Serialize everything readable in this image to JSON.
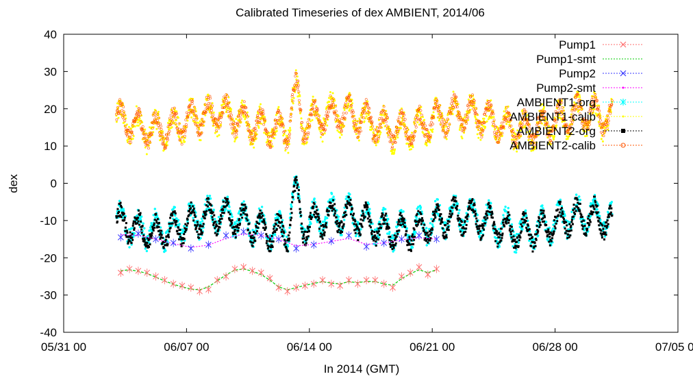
{
  "chart_data": {
    "type": "line",
    "title": "Calibrated Timeseries of dex AMBIENT, 2014/06",
    "xlabel": "In 2014 (GMT)",
    "ylabel": "dex",
    "ylim": [
      -40,
      40
    ],
    "xlim": [
      "2014-05-31 00:00",
      "2014-07-05 00:00"
    ],
    "y_ticks": [
      -40,
      -30,
      -20,
      -10,
      0,
      10,
      20,
      30,
      40
    ],
    "x_ticks": [
      {
        "value": "2014-05-31 00:00",
        "label": "05/31 00"
      },
      {
        "value": "2014-06-07 00:00",
        "label": "06/07 00"
      },
      {
        "value": "2014-06-14 00:00",
        "label": "06/14 00"
      },
      {
        "value": "2014-06-21 00:00",
        "label": "06/21 00"
      },
      {
        "value": "2014-06-28 00:00",
        "label": "06/28 00"
      },
      {
        "value": "2014-07-05 00:00",
        "label": "07/05 00"
      }
    ],
    "grid": false,
    "legend_position": "top-right",
    "series": [
      {
        "name": "Pump1",
        "color": "#ff6b6b",
        "marker": "cross",
        "style": "points-errorbars",
        "x": [
          "2014-06-03 06:00",
          "2014-06-03 18:00",
          "2014-06-04 06:00",
          "2014-06-04 18:00",
          "2014-06-05 06:00",
          "2014-06-05 18:00",
          "2014-06-06 06:00",
          "2014-06-06 18:00",
          "2014-06-07 06:00",
          "2014-06-07 18:00",
          "2014-06-08 06:00",
          "2014-06-08 18:00",
          "2014-06-09 06:00",
          "2014-06-09 18:00",
          "2014-06-10 06:00",
          "2014-06-10 18:00",
          "2014-06-11 06:00",
          "2014-06-11 18:00",
          "2014-06-12 06:00",
          "2014-06-12 18:00",
          "2014-06-13 06:00",
          "2014-06-13 18:00",
          "2014-06-14 06:00",
          "2014-06-14 18:00",
          "2014-06-15 06:00",
          "2014-06-15 18:00",
          "2014-06-16 06:00",
          "2014-06-16 18:00",
          "2014-06-17 06:00",
          "2014-06-17 18:00",
          "2014-06-18 06:00",
          "2014-06-18 18:00",
          "2014-06-19 06:00",
          "2014-06-19 18:00",
          "2014-06-20 06:00",
          "2014-06-20 18:00",
          "2014-06-21 06:00"
        ],
        "values": [
          -24,
          -23,
          -23.5,
          -24,
          -25,
          -26,
          -27,
          -27.5,
          -28,
          -29,
          -28.5,
          -26,
          -25,
          -23,
          -22.5,
          -23.5,
          -24,
          -25.5,
          -28,
          -29,
          -28,
          -27.5,
          -27,
          -26,
          -27,
          -27.5,
          -26,
          -27,
          -26,
          -26,
          -27,
          -28,
          -25,
          -24,
          -22.5,
          -24.5,
          -23
        ]
      },
      {
        "name": "Pump1-smt",
        "color": "#00cc00",
        "marker": "none",
        "style": "dashed-line",
        "x": [
          "2014-06-03 06:00",
          "2014-06-03 18:00",
          "2014-06-04 06:00",
          "2014-06-04 18:00",
          "2014-06-05 06:00",
          "2014-06-05 18:00",
          "2014-06-06 06:00",
          "2014-06-06 18:00",
          "2014-06-07 06:00",
          "2014-06-07 18:00",
          "2014-06-08 06:00",
          "2014-06-08 18:00",
          "2014-06-09 06:00",
          "2014-06-09 18:00",
          "2014-06-10 06:00",
          "2014-06-10 18:00",
          "2014-06-11 06:00",
          "2014-06-11 18:00",
          "2014-06-12 06:00",
          "2014-06-12 18:00",
          "2014-06-13 06:00",
          "2014-06-13 18:00",
          "2014-06-14 06:00",
          "2014-06-14 18:00",
          "2014-06-15 06:00",
          "2014-06-15 18:00",
          "2014-06-16 06:00",
          "2014-06-16 18:00",
          "2014-06-17 06:00",
          "2014-06-17 18:00",
          "2014-06-18 06:00",
          "2014-06-18 18:00",
          "2014-06-19 06:00",
          "2014-06-19 18:00",
          "2014-06-20 06:00",
          "2014-06-20 18:00",
          "2014-06-21 06:00"
        ],
        "values": [
          -23.5,
          -23.2,
          -23.6,
          -24.2,
          -25.2,
          -26.2,
          -27.1,
          -27.8,
          -28.4,
          -28.6,
          -27.8,
          -26.2,
          -24.6,
          -23.3,
          -23,
          -23.6,
          -24.5,
          -26,
          -27.8,
          -28.6,
          -28,
          -27.4,
          -26.9,
          -26.4,
          -26.8,
          -27,
          -26.4,
          -26.7,
          -26.3,
          -26.4,
          -27,
          -27.4,
          -25.6,
          -24.3,
          -23.2,
          -24,
          -23.2
        ]
      },
      {
        "name": "Pump2",
        "color": "#3333ff",
        "marker": "cross",
        "style": "points-errorbars",
        "x": [
          "2014-06-03 06:00",
          "2014-06-04 06:00",
          "2014-06-05 06:00",
          "2014-06-06 06:00",
          "2014-06-07 06:00",
          "2014-06-08 06:00",
          "2014-06-09 06:00",
          "2014-06-10 06:00",
          "2014-06-11 06:00",
          "2014-06-12 06:00",
          "2014-06-13 06:00",
          "2014-06-14 06:00",
          "2014-06-15 06:00",
          "2014-06-16 06:00",
          "2014-06-17 06:00",
          "2014-06-18 06:00",
          "2014-06-19 06:00",
          "2014-06-20 06:00",
          "2014-06-21 06:00"
        ],
        "values": [
          -14.5,
          -13.5,
          -15,
          -16,
          -17.5,
          -16.5,
          -14,
          -13,
          -14,
          -15,
          -17.5,
          -16.5,
          -15.5,
          -14,
          -17,
          -16,
          -15,
          -14,
          -15
        ]
      },
      {
        "name": "Pump2-smt",
        "color": "#ff00ff",
        "marker": "none",
        "style": "dotted-line",
        "x": [
          "2014-06-03 06:00",
          "2014-06-04 06:00",
          "2014-06-05 06:00",
          "2014-06-06 06:00",
          "2014-06-07 06:00",
          "2014-06-08 06:00",
          "2014-06-09 06:00",
          "2014-06-10 06:00",
          "2014-06-11 06:00",
          "2014-06-12 06:00",
          "2014-06-13 06:00",
          "2014-06-14 06:00",
          "2014-06-15 06:00",
          "2014-06-16 06:00",
          "2014-06-17 06:00",
          "2014-06-18 06:00",
          "2014-06-19 06:00",
          "2014-06-20 06:00",
          "2014-06-21 06:00"
        ],
        "values": [
          -13.8,
          -14,
          -15,
          -16.2,
          -17.2,
          -16.6,
          -14.8,
          -13.6,
          -14,
          -15,
          -16.8,
          -16.4,
          -15.6,
          -14.8,
          -16.4,
          -16,
          -15.2,
          -14.6,
          -15
        ]
      },
      {
        "name": "AMBIENT1-org",
        "color": "#00ffff",
        "marker": "star",
        "style": "dense-points",
        "x_range": [
          "2014-06-03 00:00",
          "2014-07-01 06:00"
        ],
        "values_note": "dense band between about -18 and -3, same shape as AMBIENT2-org",
        "baseline": -11,
        "amplitude": 4
      },
      {
        "name": "AMBIENT1-calib",
        "color": "#ffff00",
        "marker": "dot",
        "style": "dense-points",
        "x_range": [
          "2014-06-03 00:00",
          "2014-07-01 06:00"
        ],
        "baseline": 16,
        "amplitude": 4
      },
      {
        "name": "AMBIENT2-org",
        "color": "#000000",
        "marker": "square",
        "style": "dense-points",
        "x_range": [
          "2014-06-03 00:00",
          "2014-07-01 06:00"
        ],
        "baseline": -11,
        "amplitude": 4
      },
      {
        "name": "AMBIENT2-calib",
        "color": "#ff5500",
        "marker": "circle",
        "style": "dense-points",
        "x_range": [
          "2014-06-03 00:00",
          "2014-07-01 06:00"
        ],
        "baseline": 16.5,
        "amplitude": 4
      }
    ],
    "legend": [
      {
        "name": "Pump1"
      },
      {
        "name": "Pump1-smt"
      },
      {
        "name": "Pump2"
      },
      {
        "name": "Pump2-smt"
      },
      {
        "name": "AMBIENT1-org"
      },
      {
        "name": "AMBIENT1-calib"
      },
      {
        "name": "AMBIENT2-org"
      },
      {
        "name": "AMBIENT2-calib"
      }
    ]
  }
}
